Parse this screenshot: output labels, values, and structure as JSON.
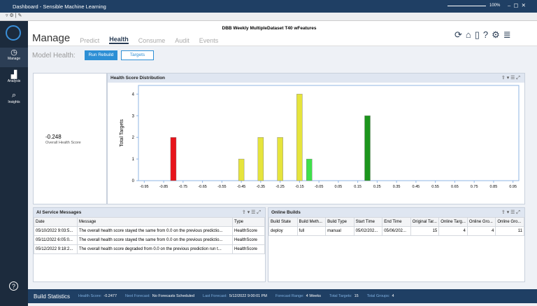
{
  "window": {
    "title": "Dashboard - Sensible Machine Learning",
    "zoom": "100%"
  },
  "sidebar": [
    "Manage",
    "Analysis",
    "Insights"
  ],
  "header": {
    "model": "DBB Weekly MultipleDataset T40 wFeatures",
    "tabs": [
      "Manage",
      "Predict",
      "Health",
      "Consume",
      "Audit",
      "Events"
    ]
  },
  "toolbar": {
    "label": "Model Health:",
    "buttons": [
      "Run Rebuild",
      "Targets"
    ]
  },
  "health_score": {
    "value": "-0.248",
    "label": "Overall Health Score"
  },
  "chart_data": {
    "type": "bar",
    "title": "Health Score Distribution",
    "y_label": "Total Targets",
    "x": [
      -0.8,
      -0.45,
      -0.35,
      -0.25,
      -0.15,
      -0.1,
      0.2
    ],
    "values": [
      2,
      1,
      2,
      2,
      4,
      1,
      3
    ],
    "colors": [
      "#e8141b",
      "#e6e43c",
      "#e6e43c",
      "#e6e43c",
      "#e6e43c",
      "#3fe04a",
      "#1c951c"
    ],
    "xlim": [
      -0.98,
      0.98
    ],
    "xticks": [
      -0.95,
      -0.85,
      -0.75,
      -0.65,
      -0.55,
      -0.45,
      -0.35,
      -0.25,
      -0.15,
      -0.05,
      0.05,
      0.15,
      0.25,
      0.35,
      0.45,
      0.55,
      0.65,
      0.75,
      0.85,
      0.95
    ],
    "ylim": [
      0,
      4.4
    ],
    "yticks": [
      0,
      1,
      2,
      3,
      4
    ]
  },
  "messages": {
    "title": "AI Service Messages",
    "columns": [
      "Date",
      "Message",
      "Type"
    ],
    "rows": [
      [
        "05/10/2022 9:03:5...",
        "The overall health score stayed the same from 0.0 on the previous predictio...",
        "HealthScore"
      ],
      [
        "05/11/2022 6:05:0...",
        "The overall health score stayed the same from 0.0 on the previous predictio...",
        "HealthScore"
      ],
      [
        "05/12/2022 9:18:2...",
        "The overall health score degraded from 0.0 on the previous prediction run t...",
        "HealthScore"
      ]
    ]
  },
  "builds": {
    "title": "Online Builds",
    "columns": [
      "Build State",
      "Build Meth...",
      "Build Type",
      "Start Time",
      "End Time",
      "Original Tar...",
      "Online Targ...",
      "Online Gro...",
      "Online Gro..."
    ],
    "rows": [
      [
        "deploy",
        "full",
        "manual",
        "05/02/202...",
        "05/06/202...",
        "15",
        "4",
        "4",
        "11"
      ]
    ]
  },
  "status": {
    "title": "Build Statistics",
    "items": [
      {
        "label": "Health Score:",
        "value": "-0.2477"
      },
      {
        "label": "Next Forecast:",
        "value": "No Forecasts Scheduled"
      },
      {
        "label": "Last Forecast:",
        "value": "5/12/2022 9:00:01 PM"
      },
      {
        "label": "Forecast Range:",
        "value": "4 Weeks"
      },
      {
        "label": "Total Targets:",
        "value": "15"
      },
      {
        "label": "Total Groups:",
        "value": "4"
      }
    ]
  }
}
